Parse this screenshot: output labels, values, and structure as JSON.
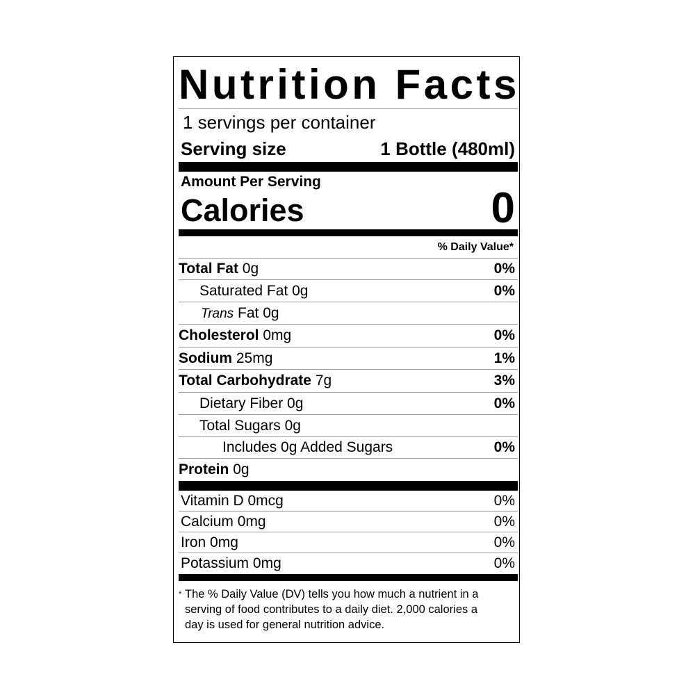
{
  "title": "Nutrition Facts",
  "servings": "1 servings per container",
  "serving_size": {
    "label": "Serving size",
    "value": "1 Bottle (480ml)"
  },
  "amount_per_serving": "Amount Per Serving",
  "calories": {
    "label": "Calories",
    "value": "0"
  },
  "daily_value_header": "% Daily Value*",
  "nutrients": [
    {
      "name": "Total Fat",
      "amount": "0g",
      "dv": "0%"
    },
    {
      "name": "Saturated Fat",
      "amount": "0g",
      "dv": "0%"
    },
    {
      "name_italic": "Trans",
      "name": "Fat",
      "amount": "0g"
    },
    {
      "name": "Cholesterol",
      "amount": "0mg",
      "dv": "0%"
    },
    {
      "name": "Sodium",
      "amount": "25mg",
      "dv": "1%"
    },
    {
      "name": "Total Carbohydrate",
      "amount": "7g",
      "dv": "3%"
    },
    {
      "name": "Dietary Fiber",
      "amount": "0g",
      "dv": "0%"
    },
    {
      "name": "Total Sugars",
      "amount": "0g"
    },
    {
      "name": "Includes 0g Added Sugars",
      "dv": "0%"
    },
    {
      "name": "Protein",
      "amount": "0g"
    }
  ],
  "vitamins": [
    {
      "name": "Vitamin D",
      "amount": "0mcg",
      "dv": "0%"
    },
    {
      "name": "Calcium",
      "amount": "0mg",
      "dv": "0%"
    },
    {
      "name": "Iron",
      "amount": "0mg",
      "dv": "0%"
    },
    {
      "name": "Potassium",
      "amount": "0mg",
      "dv": "0%"
    }
  ],
  "footnote": {
    "marker": "*",
    "lines": [
      "The % Daily Value (DV) tells you how much a nutrient in a",
      "serving of food contributes to a daily diet. 2,000 calories a",
      "day is used for general nutrition advice."
    ]
  }
}
